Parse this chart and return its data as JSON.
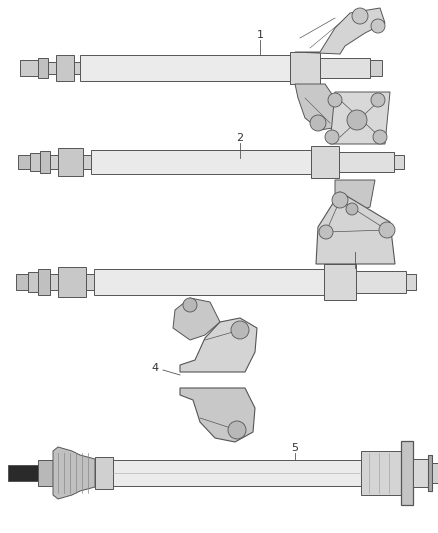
{
  "background_color": "#ffffff",
  "line_color": "#555555",
  "label_color": "#333333",
  "label_fontsize": 8,
  "fig_width": 4.38,
  "fig_height": 5.33,
  "dpi": 100
}
